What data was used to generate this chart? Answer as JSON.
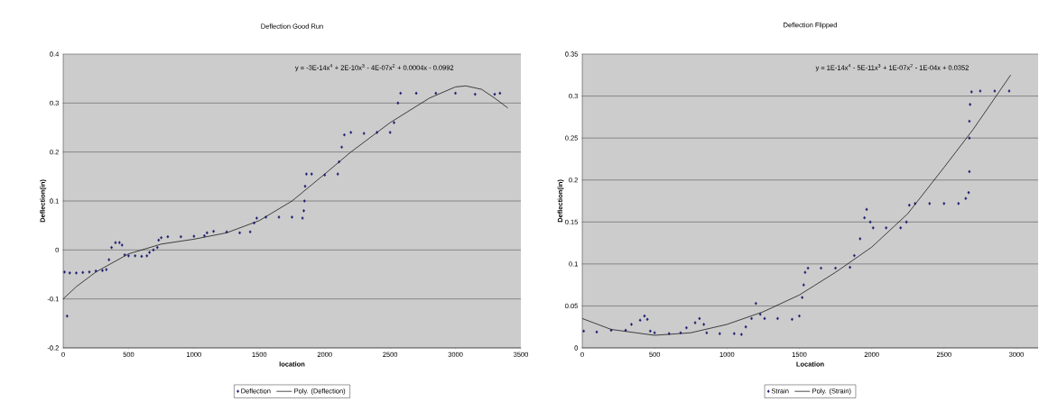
{
  "chart_data": [
    {
      "type": "scatter",
      "title": "Deflection Good Run",
      "xlabel": "location",
      "ylabel": "Deflection(in)",
      "xlim": [
        0,
        3500
      ],
      "ylim": [
        -0.2,
        0.4
      ],
      "xticks": [
        0,
        500,
        1000,
        1500,
        2000,
        2500,
        3000,
        3500
      ],
      "yticks": [
        -0.2,
        -0.1,
        0,
        0.1,
        0.2,
        0.3,
        0.4
      ],
      "grid": "y",
      "legend": "bottom",
      "annotations": [
        "y = -3E-14x$^{4}$ + 2E-10x$^{3}$ - 4E-07x$^{2}$ + 0.0004x - 0.0992"
      ],
      "series": [
        {
          "name": "Deflection",
          "marker": "diamond",
          "color": "#1a1a6e",
          "x": [
            10,
            30,
            50,
            100,
            150,
            200,
            250,
            300,
            330,
            350,
            370,
            400,
            430,
            450,
            470,
            500,
            550,
            600,
            640,
            660,
            690,
            720,
            730,
            750,
            800,
            900,
            1000,
            1080,
            1100,
            1150,
            1250,
            1350,
            1430,
            1460,
            1480,
            1550,
            1650,
            1750,
            1830,
            1840,
            1845,
            1850,
            1860,
            1900,
            2000,
            2100,
            2110,
            2130,
            2150,
            2200,
            2300,
            2400,
            2500,
            2530,
            2560,
            2580,
            2700,
            2850,
            3000,
            3150,
            3300,
            3340
          ],
          "values": [
            -0.045,
            -0.135,
            -0.047,
            -0.047,
            -0.046,
            -0.045,
            -0.043,
            -0.042,
            -0.04,
            -0.02,
            0.005,
            0.015,
            0.015,
            0.01,
            -0.01,
            -0.012,
            -0.012,
            -0.013,
            -0.012,
            -0.005,
            0,
            0.005,
            0.02,
            0.025,
            0.027,
            0.027,
            0.028,
            0.029,
            0.035,
            0.038,
            0.037,
            0.035,
            0.037,
            0.055,
            0.065,
            0.067,
            0.067,
            0.067,
            0.065,
            0.08,
            0.1,
            0.13,
            0.155,
            0.155,
            0.153,
            0.155,
            0.18,
            0.21,
            0.235,
            0.24,
            0.238,
            0.24,
            0.24,
            0.26,
            0.3,
            0.32,
            0.32,
            0.32,
            0.32,
            0.318,
            0.318,
            0.32
          ]
        },
        {
          "name": "Poly. (Deflection)",
          "type": "line",
          "color": "#000000",
          "x": [
            0,
            100,
            250,
            500,
            750,
            1000,
            1250,
            1500,
            1750,
            2000,
            2200,
            2500,
            2800,
            3000,
            3080,
            3200,
            3300,
            3400
          ],
          "values": [
            -0.1,
            -0.075,
            -0.045,
            -0.008,
            0.012,
            0.022,
            0.035,
            0.06,
            0.1,
            0.155,
            0.2,
            0.26,
            0.31,
            0.333,
            0.335,
            0.328,
            0.31,
            0.29
          ]
        }
      ]
    },
    {
      "type": "scatter",
      "title": "Deflection Flipped",
      "xlabel": "Location",
      "ylabel": "Deflection(in)",
      "xlim": [
        0,
        3150
      ],
      "ylim": [
        0,
        0.35
      ],
      "xticks": [
        0,
        500,
        1000,
        1500,
        2000,
        2500,
        3000
      ],
      "yticks": [
        0,
        0.05,
        0.1,
        0.15,
        0.2,
        0.25,
        0.3,
        0.35
      ],
      "grid": "y",
      "legend": "bottom",
      "annotations": [
        "y = 1E-14x$^{4}$ - 5E-11x$^{3}$ + 1E-07x$^{2}$ - 1E-04x + 0.0352"
      ],
      "series": [
        {
          "name": "Strain",
          "marker": "diamond",
          "color": "#1a1a6e",
          "x": [
            10,
            100,
            200,
            300,
            340,
            400,
            430,
            450,
            470,
            500,
            600,
            680,
            720,
            780,
            810,
            840,
            860,
            950,
            1050,
            1100,
            1130,
            1170,
            1200,
            1230,
            1260,
            1350,
            1450,
            1500,
            1520,
            1530,
            1540,
            1560,
            1650,
            1750,
            1850,
            1880,
            1920,
            1950,
            1965,
            1990,
            2010,
            2100,
            2200,
            2240,
            2260,
            2300,
            2400,
            2500,
            2600,
            2650,
            2670,
            2675,
            2675,
            2675,
            2680,
            2690,
            2750,
            2850,
            2950
          ],
          "values": [
            0.02,
            0.019,
            0.021,
            0.021,
            0.028,
            0.033,
            0.038,
            0.034,
            0.02,
            0.018,
            0.017,
            0.018,
            0.024,
            0.03,
            0.035,
            0.028,
            0.018,
            0.017,
            0.017,
            0.016,
            0.025,
            0.035,
            0.053,
            0.04,
            0.035,
            0.035,
            0.034,
            0.038,
            0.06,
            0.075,
            0.09,
            0.095,
            0.095,
            0.095,
            0.096,
            0.11,
            0.13,
            0.155,
            0.165,
            0.15,
            0.143,
            0.143,
            0.143,
            0.15,
            0.17,
            0.172,
            0.172,
            0.172,
            0.172,
            0.178,
            0.185,
            0.21,
            0.25,
            0.27,
            0.29,
            0.305,
            0.306,
            0.306,
            0.306
          ]
        },
        {
          "name": "Poly. (Strain)",
          "type": "line",
          "color": "#000000",
          "x": [
            0,
            200,
            500,
            750,
            1000,
            1250,
            1500,
            1750,
            2000,
            2250,
            2500,
            2700,
            2900,
            2960
          ],
          "values": [
            0.035,
            0.022,
            0.015,
            0.018,
            0.028,
            0.043,
            0.063,
            0.09,
            0.12,
            0.16,
            0.215,
            0.26,
            0.31,
            0.325
          ]
        }
      ]
    }
  ]
}
